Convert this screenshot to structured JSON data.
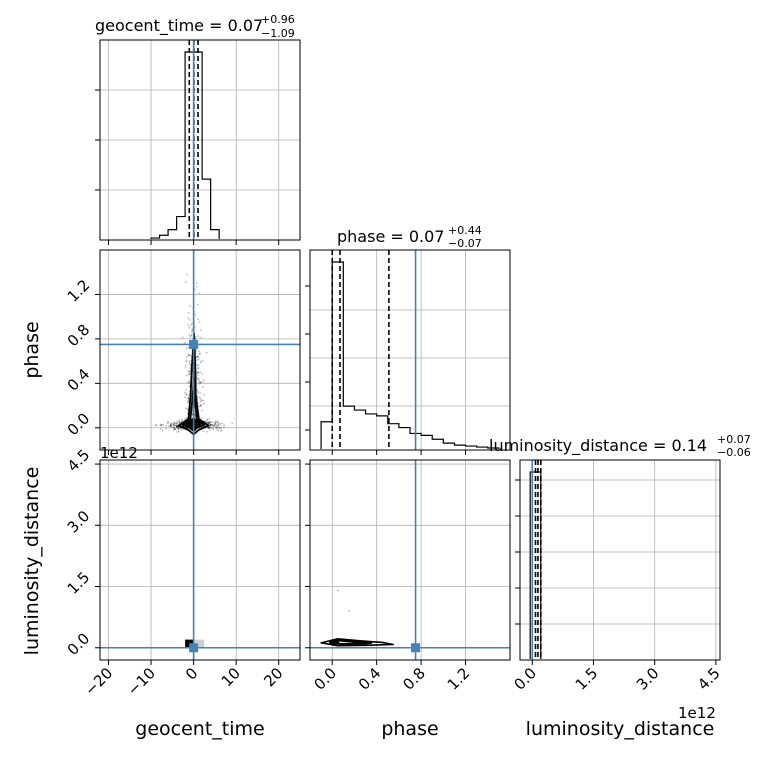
{
  "chart_data": {
    "type": "corner",
    "parameters": [
      "geocent_time",
      "phase",
      "luminosity_distance"
    ],
    "truth": {
      "geocent_time": 0.0,
      "phase": 0.75,
      "luminosity_distance": 0.0
    },
    "truth_color": "#4682b4",
    "offset_label": "1e12",
    "titles": [
      {
        "name": "geocent_time",
        "median": "0.07",
        "plus": "+0.96",
        "minus": "−1.09"
      },
      {
        "name": "phase",
        "median": "0.07",
        "plus": "+0.44",
        "minus": "−0.07"
      },
      {
        "name": "luminosity_distance",
        "median": "0.14",
        "plus": "+0.07",
        "minus": "−0.06"
      }
    ],
    "axes": {
      "geocent_time": {
        "range": [
          -22,
          25
        ],
        "ticks": [
          -20,
          -10,
          0,
          10,
          20
        ],
        "tick_labels": [
          "−20",
          "−10",
          "0",
          "10",
          "20"
        ]
      },
      "phase": {
        "range": [
          -0.2,
          1.6
        ],
        "ticks": [
          0.0,
          0.4,
          0.8,
          1.2
        ],
        "tick_labels": [
          "0.0",
          "0.4",
          "0.8",
          "1.2"
        ]
      },
      "luminosity_distance": {
        "range": [
          -0.3,
          4.6
        ],
        "ticks": [
          0.0,
          1.5,
          3.0,
          4.5
        ],
        "tick_labels": [
          "0.0",
          "1.5",
          "3.0",
          "4.5"
        ]
      }
    },
    "histograms": {
      "geocent_time": {
        "edges": [
          -10,
          -8,
          -6,
          -4,
          -2,
          0,
          2,
          4,
          6
        ],
        "counts": [
          0.005,
          0.02,
          0.05,
          0.12,
          1.0,
          1.0,
          0.32,
          0.05
        ],
        "quantiles": [
          -1.02,
          0.07,
          1.03
        ]
      },
      "phase": {
        "edges": [
          -0.1,
          0.0,
          0.1,
          0.2,
          0.3,
          0.4,
          0.5,
          0.6,
          0.7,
          0.8,
          0.9,
          1.0,
          1.1,
          1.2,
          1.3,
          1.4,
          1.5
        ],
        "counts": [
          0.14,
          0.96,
          0.22,
          0.2,
          0.18,
          0.17,
          0.13,
          0.11,
          0.08,
          0.07,
          0.05,
          0.03,
          0.02,
          0.015,
          0.01,
          0.005
        ],
        "quantiles": [
          0.0,
          0.07,
          0.51
        ]
      },
      "luminosity_distance": {
        "edges": [
          -0.05,
          0.08,
          0.21
        ],
        "counts": [
          1.0,
          1.0
        ],
        "quantiles": [
          0.08,
          0.14,
          0.21
        ]
      }
    },
    "contours": {
      "phase_vs_geocent_time": [
        [
          [
            -3.5,
            0.02
          ],
          [
            -1.2,
            -0.02
          ],
          [
            0,
            -0.06
          ],
          [
            1.2,
            -0.02
          ],
          [
            3.5,
            0.02
          ],
          [
            1.2,
            0.08
          ],
          [
            0.5,
            0.3
          ],
          [
            0.4,
            0.55
          ],
          [
            0.1,
            0.85
          ],
          [
            -0.4,
            0.55
          ],
          [
            -0.7,
            0.3
          ],
          [
            -1.2,
            0.08
          ]
        ],
        [
          [
            -2.5,
            0.03
          ],
          [
            -0.8,
            0.0
          ],
          [
            0,
            -0.03
          ],
          [
            0.8,
            0.0
          ],
          [
            2.5,
            0.03
          ],
          [
            0.8,
            0.07
          ],
          [
            0.3,
            0.25
          ],
          [
            0.1,
            0.45
          ],
          [
            -0.3,
            0.25
          ],
          [
            -0.8,
            0.07
          ]
        ],
        [
          [
            -1.5,
            0.03
          ],
          [
            -0.5,
            0.01
          ],
          [
            0,
            0.0
          ],
          [
            0.5,
            0.01
          ],
          [
            1.5,
            0.03
          ],
          [
            0.5,
            0.06
          ],
          [
            0,
            0.08
          ],
          [
            -0.5,
            0.06
          ]
        ]
      ],
      "luminosity_distance_vs_phase": [
        [
          [
            -0.1,
            0.12
          ],
          [
            0.05,
            0.05
          ],
          [
            0.3,
            0.06
          ],
          [
            0.55,
            0.08
          ],
          [
            0.45,
            0.13
          ],
          [
            0.25,
            0.17
          ],
          [
            0.05,
            0.22
          ]
        ],
        [
          [
            -0.02,
            0.13
          ],
          [
            0.08,
            0.09
          ],
          [
            0.25,
            0.1
          ],
          [
            0.35,
            0.12
          ],
          [
            0.2,
            0.15
          ],
          [
            0.05,
            0.18
          ]
        ]
      ]
    },
    "grid": true,
    "legend": "none"
  }
}
